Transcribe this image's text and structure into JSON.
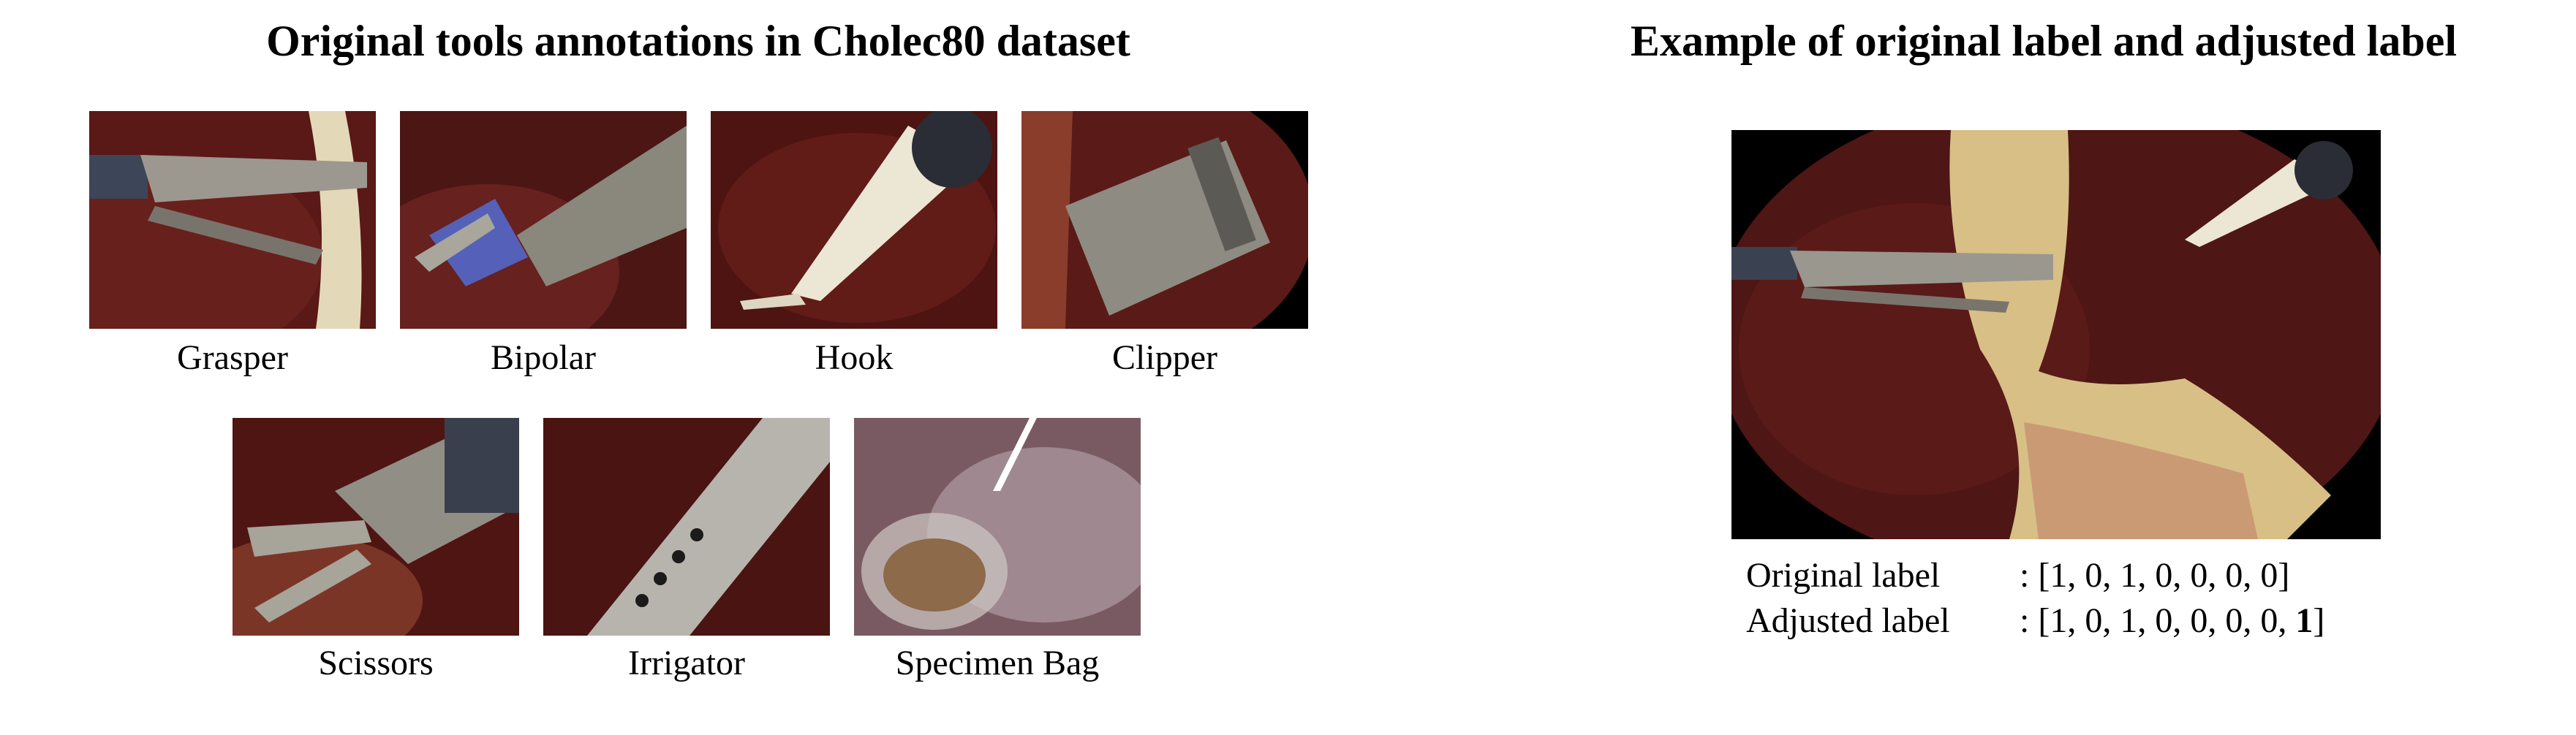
{
  "left_panel": {
    "title": "Original tools annotations in Cholec80 dataset",
    "tools": [
      {
        "name": "Grasper",
        "icon": "grasper-tool-image"
      },
      {
        "name": "Bipolar",
        "icon": "bipolar-tool-image"
      },
      {
        "name": "Hook",
        "icon": "hook-tool-image"
      },
      {
        "name": "Clipper",
        "icon": "clipper-tool-image"
      },
      {
        "name": "Scissors",
        "icon": "scissors-tool-image"
      },
      {
        "name": "Irrigator",
        "icon": "irrigator-tool-image"
      },
      {
        "name": "Specimen Bag",
        "icon": "specimen-bag-tool-image"
      }
    ]
  },
  "right_panel": {
    "title": "Example of original label and adjusted label",
    "original_label": {
      "name": "Original label",
      "value": ": [1, 0, 1, 0, 0, 0, 0]"
    },
    "adjusted_label": {
      "name": "Adjusted label",
      "value_prefix": ": [1, 0, 1, 0, 0, 0, 0, ",
      "value_bold": "1",
      "value_suffix": "]"
    }
  },
  "colors": {
    "tissue_dark": "#3a0f0e",
    "tissue": "#6b201d",
    "metal": "#8f8c85",
    "fat": "#d9c48a"
  }
}
